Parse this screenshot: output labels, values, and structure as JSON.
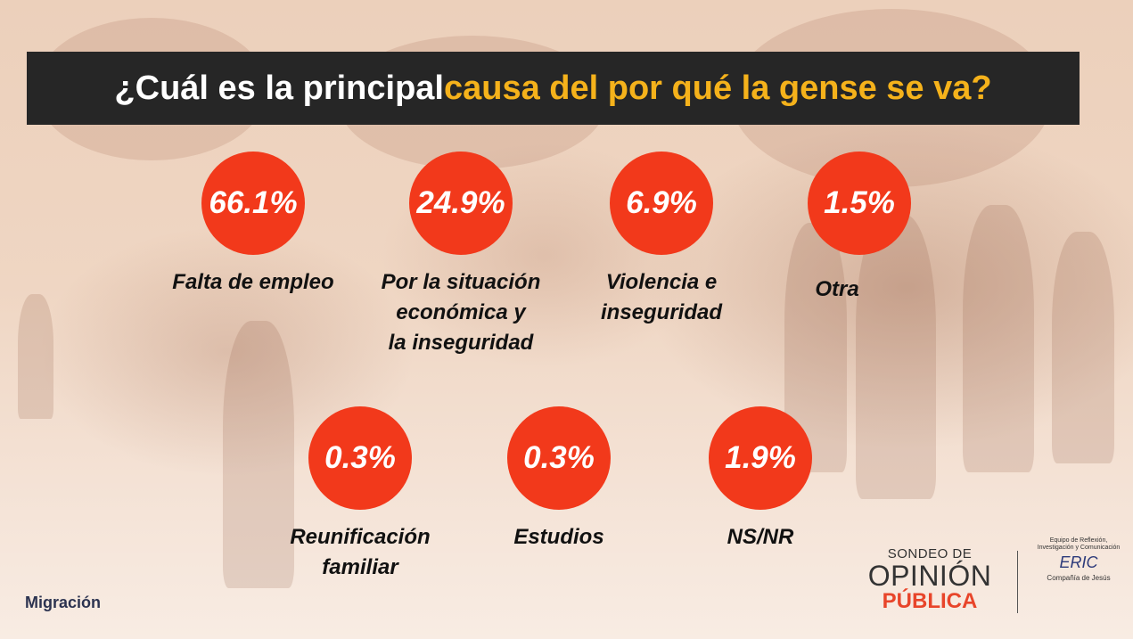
{
  "title": {
    "part1": "¿Cuál es la principal ",
    "part2": "causa del por qué la gense se va?"
  },
  "colors": {
    "accent_orange": "#f5b21b",
    "circle_red": "#f2391b",
    "title_bar": "#262626"
  },
  "items": [
    {
      "value": "66.1%",
      "label": "Falta de empleo"
    },
    {
      "value": "24.9%",
      "label": "Por la situación\neconómica y\nla inseguridad"
    },
    {
      "value": "6.9%",
      "label": "Violencia e\ninseguridad"
    },
    {
      "value": "1.5%",
      "label": "Otra"
    },
    {
      "value": "0.3%",
      "label": "Reunificación\nfamiliar"
    },
    {
      "value": "0.3%",
      "label": "Estudios"
    },
    {
      "value": "1.9%",
      "label": "NS/NR"
    }
  ],
  "footer": {
    "section": "Migración",
    "logo_sondeo": {
      "line1": "SONDEO DE",
      "line2": "OPINIÓN",
      "line3": "PÚBLICA"
    },
    "logo_eric": {
      "tagline": "Equipo de Reflexión, Investigación y Comunicación",
      "mark": "ERIC",
      "caption": "Compañía de Jesús"
    }
  }
}
